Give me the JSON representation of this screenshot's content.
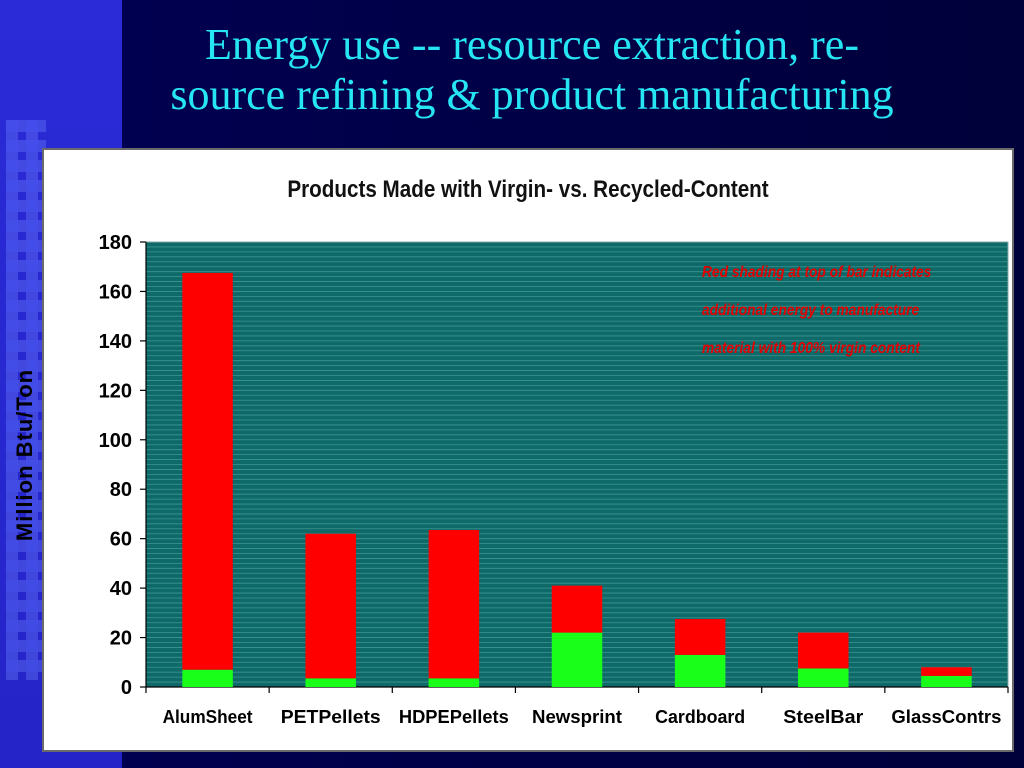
{
  "slide": {
    "title_line1": "Energy use -- resource extraction, re-",
    "title_line2": "source refining & product manufacturing"
  },
  "colors": {
    "plot_bg": "#0e6a68",
    "virgin_extra": "#ff0000",
    "recycled": "#19ff19",
    "title": "#27e6f4",
    "note": "#e30000"
  },
  "chart_data": {
    "type": "bar",
    "stacked": true,
    "title": "Products Made with Virgin- vs. Recycled-Content",
    "ylabel": "Million Btu/Ton",
    "xlabel": "",
    "ylim": [
      0,
      180
    ],
    "yticks": [
      0,
      20,
      40,
      60,
      80,
      100,
      120,
      140,
      160,
      180
    ],
    "categories": [
      "AlumSheet",
      "PETPellets",
      "HDPEPellets",
      "Newsprint",
      "Cardboard",
      "SteelBar",
      "GlassContrs"
    ],
    "series": [
      {
        "values": [
          7,
          3.5,
          3.5,
          22,
          13,
          7.5,
          4.5
        ]
      },
      {
        "values": [
          160.5,
          58.5,
          60,
          19,
          14.5,
          14.5,
          3.5
        ]
      }
    ],
    "annotation_lines": [
      "Red shading at top of bar indicates",
      "additional energy to manufacture",
      "material with 100% virgin content"
    ]
  }
}
